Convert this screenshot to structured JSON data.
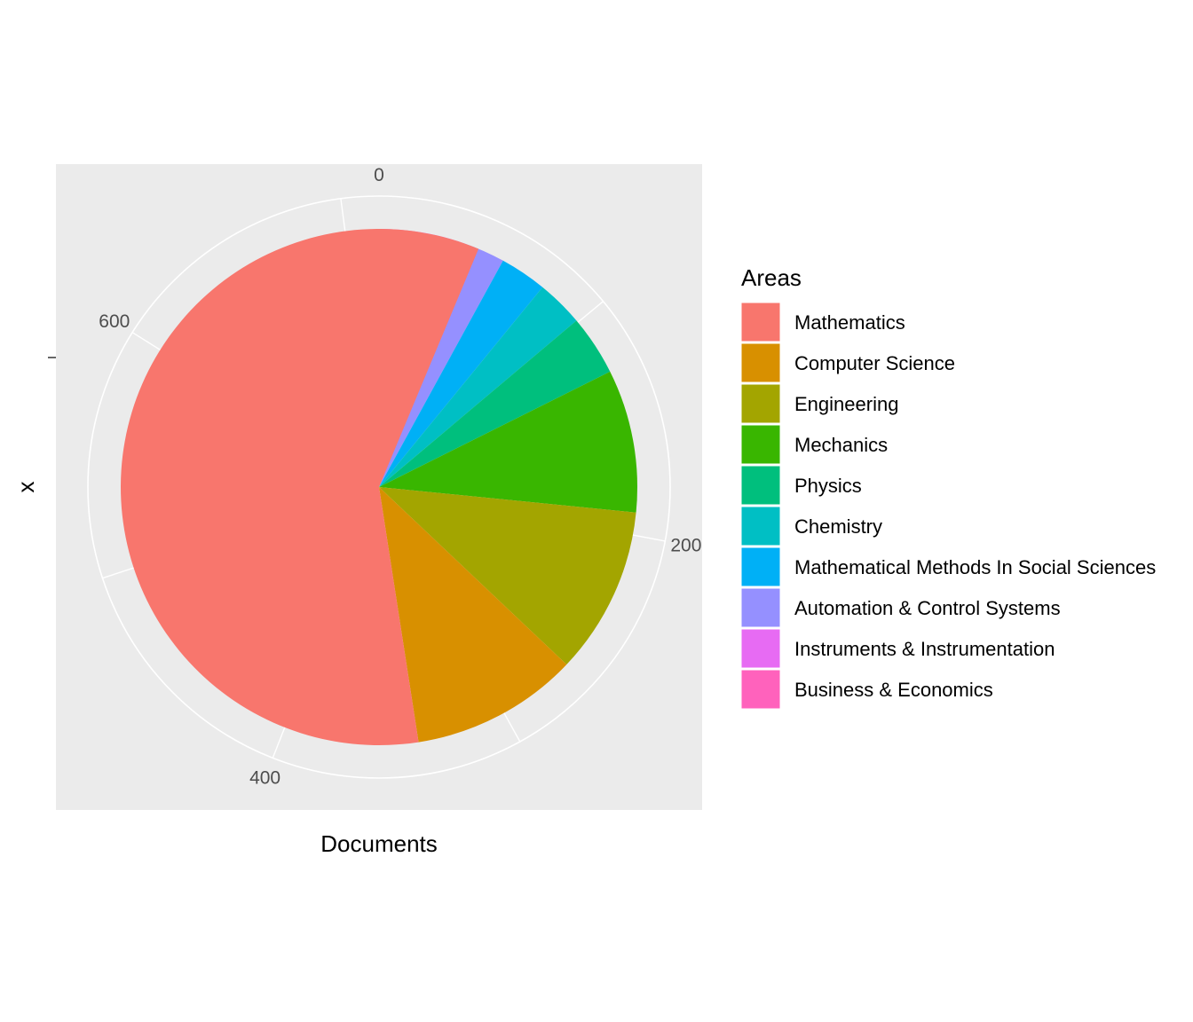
{
  "chart_data": {
    "type": "pie",
    "xlabel": "Documents",
    "ylabel": "x",
    "legend_title": "Areas",
    "legend_position": "right",
    "theta_ticks": [
      "0",
      "200",
      "400",
      "600"
    ],
    "theta_tick_values": [
      0,
      200,
      400,
      600
    ],
    "theta_max": 715,
    "categories": [
      "Mathematics",
      "Computer Science",
      "Engineering",
      "Mechanics",
      "Physics",
      "Chemistry",
      "Mathematical Methods In Social Sciences",
      "Automation & Control Systems",
      "Instruments & Instrumentation",
      "Business & Economics"
    ],
    "values": [
      420,
      75,
      75,
      64,
      27,
      21,
      21,
      19,
      19,
      19
    ],
    "colors": [
      "#F8766D",
      "#D89000",
      "#A3A500",
      "#39B600",
      "#00BF7D",
      "#00BFC4",
      "#00B0F6",
      "#9590FF",
      "#E76BF3",
      "#FF62BC"
    ],
    "panel_background": "#EBEBEB",
    "grid_color": "#FFFFFF"
  }
}
